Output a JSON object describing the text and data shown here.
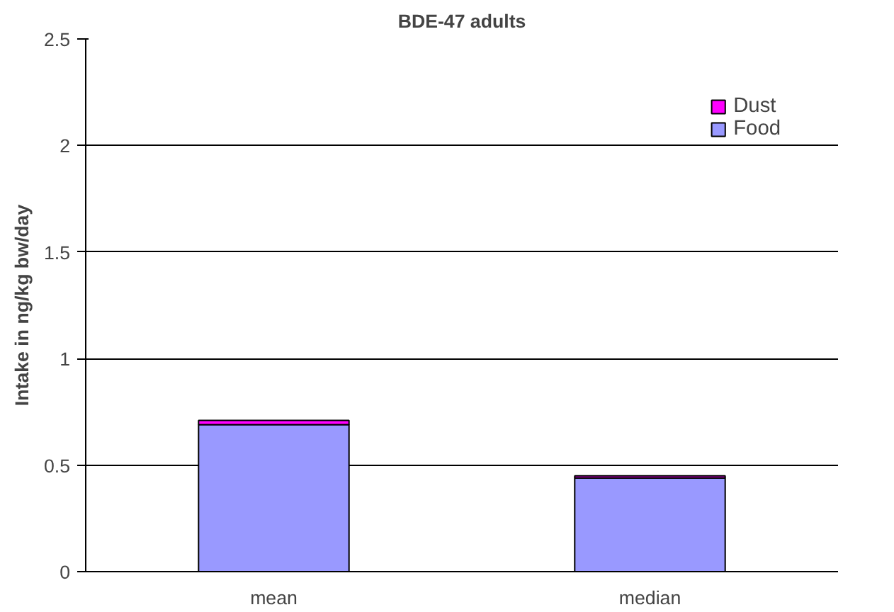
{
  "chart_data": {
    "type": "bar",
    "title": "BDE-47 adults",
    "ylabel": "Intake in ng/kg bw/day",
    "categories": [
      "mean",
      "median"
    ],
    "stacked": true,
    "series": [
      {
        "name": "Food",
        "color": "#9999ff",
        "values": [
          0.69,
          0.44
        ]
      },
      {
        "name": "Dust",
        "color": "#ff00ff",
        "values": [
          0.02,
          0.01
        ]
      }
    ],
    "ylim": [
      0,
      2.5
    ],
    "yticks": [
      0,
      0.5,
      1,
      1.5,
      2,
      2.5
    ],
    "grid": "y",
    "legend": "top right"
  }
}
